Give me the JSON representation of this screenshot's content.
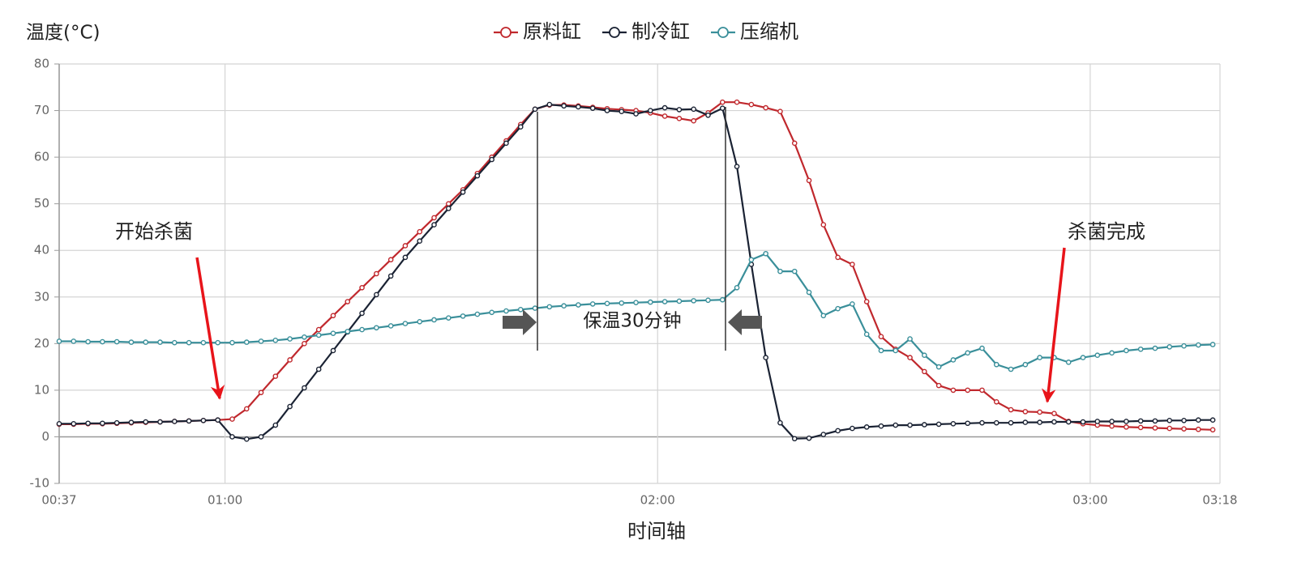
{
  "chart_data": {
    "type": "line",
    "y_label": "温度(°C)",
    "x_label": "时间轴",
    "annotations": [
      "开始杀菌",
      "保温30分钟",
      "杀菌完成"
    ],
    "xlim": [
      37,
      198
    ],
    "xticks": [
      {
        "value": 37,
        "label": "00:37"
      },
      {
        "value": 60,
        "label": "01:00"
      },
      {
        "value": 120,
        "label": "02:00"
      },
      {
        "value": 180,
        "label": "03:00"
      },
      {
        "value": 198,
        "label": "03:18"
      }
    ],
    "ylim": [
      -10,
      80
    ],
    "yticks": [
      -10,
      0,
      10,
      20,
      30,
      40,
      50,
      60,
      70,
      80
    ],
    "grid": true,
    "legend": "top",
    "x": [
      37,
      39,
      41,
      43,
      45,
      47,
      49,
      51,
      53,
      55,
      57,
      59,
      61,
      63,
      65,
      67,
      69,
      71,
      73,
      75,
      77,
      79,
      81,
      83,
      85,
      87,
      89,
      91,
      93,
      95,
      97,
      99,
      101,
      103,
      105,
      107,
      109,
      111,
      113,
      115,
      117,
      119,
      121,
      123,
      125,
      127,
      129,
      131,
      133,
      135,
      137,
      139,
      141,
      143,
      145,
      147,
      149,
      151,
      153,
      155,
      157,
      159,
      161,
      163,
      165,
      167,
      169,
      171,
      173,
      175,
      177,
      179,
      181,
      183,
      185,
      187,
      189,
      191,
      193,
      195,
      197
    ],
    "series": [
      {
        "name": "原料缸",
        "color": "#c0282d",
        "values": [
          2.7,
          2.7,
          2.8,
          2.8,
          2.9,
          3.0,
          3.1,
          3.2,
          3.3,
          3.4,
          3.5,
          3.6,
          3.8,
          6,
          9.5,
          13,
          16.5,
          20,
          23,
          26,
          29,
          32,
          35,
          38,
          41,
          44,
          47,
          50,
          53,
          56.5,
          60,
          63.5,
          67,
          70.3,
          71.2,
          71.2,
          71,
          70.7,
          70.4,
          70.2,
          70,
          69.5,
          68.8,
          68.3,
          67.8,
          69.5,
          71.8,
          71.8,
          71.3,
          70.6,
          69.8,
          63,
          55,
          45.5,
          38.5,
          37,
          29,
          21.5,
          18.8,
          17,
          14,
          11,
          10,
          10,
          10,
          7.5,
          5.8,
          5.4,
          5.3,
          5,
          3.3,
          2.8,
          2.5,
          2.3,
          2.1,
          2,
          1.9,
          1.8,
          1.7,
          1.6,
          1.5
        ]
      },
      {
        "name": "制冷缸",
        "color": "#1a2233",
        "values": [
          2.8,
          2.8,
          2.9,
          2.9,
          3.0,
          3.1,
          3.2,
          3.2,
          3.3,
          3.4,
          3.5,
          3.6,
          0,
          -0.5,
          0,
          2.5,
          6.5,
          10.5,
          14.5,
          18.5,
          22.5,
          26.5,
          30.5,
          34.5,
          38.5,
          42,
          45.5,
          49,
          52.5,
          56,
          59.5,
          63,
          66.5,
          70.3,
          71.3,
          71,
          70.8,
          70.5,
          70,
          69.8,
          69.3,
          70,
          70.6,
          70.2,
          70.3,
          69,
          70.5,
          58,
          37,
          17,
          3,
          -0.4,
          -0.3,
          0.5,
          1.3,
          1.8,
          2.1,
          2.3,
          2.5,
          2.5,
          2.6,
          2.7,
          2.8,
          2.9,
          3.0,
          3.0,
          3.0,
          3.1,
          3.1,
          3.2,
          3.2,
          3.2,
          3.3,
          3.3,
          3.3,
          3.4,
          3.4,
          3.5,
          3.5,
          3.6,
          3.6
        ]
      },
      {
        "name": "压缩机",
        "color": "#3a8f9a",
        "values": [
          20.5,
          20.5,
          20.4,
          20.4,
          20.4,
          20.3,
          20.3,
          20.3,
          20.2,
          20.2,
          20.2,
          20.2,
          20.2,
          20.3,
          20.5,
          20.7,
          21,
          21.4,
          21.8,
          22.2,
          22.6,
          23,
          23.4,
          23.8,
          24.3,
          24.7,
          25.1,
          25.5,
          25.9,
          26.3,
          26.7,
          27,
          27.3,
          27.6,
          27.9,
          28.1,
          28.3,
          28.5,
          28.6,
          28.7,
          28.8,
          28.9,
          29,
          29.1,
          29.2,
          29.3,
          29.4,
          32,
          38,
          39.3,
          35.5,
          35.5,
          31,
          26,
          27.5,
          28.5,
          22,
          18.5,
          18.5,
          21,
          17.5,
          15,
          16.5,
          18,
          19,
          15.5,
          14.5,
          15.5,
          17,
          17,
          16,
          17,
          17.5,
          18,
          18.5,
          18.8,
          19,
          19.3,
          19.5,
          19.7,
          19.8
        ]
      }
    ]
  }
}
